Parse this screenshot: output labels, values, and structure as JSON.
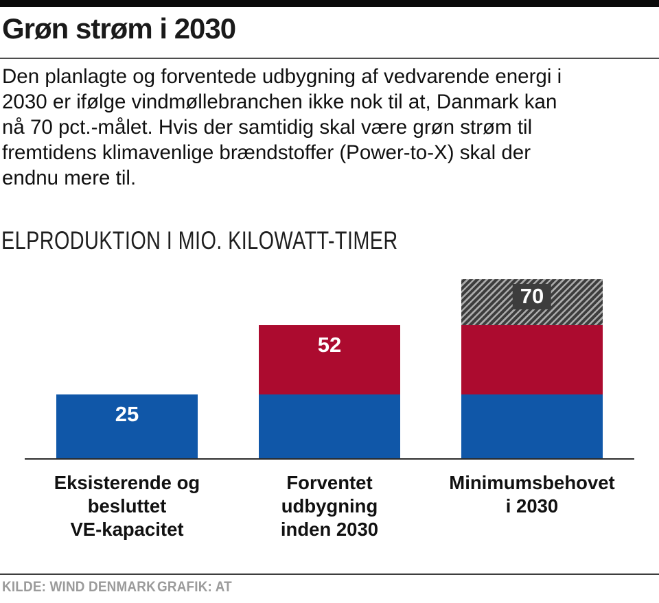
{
  "header": {
    "title": "Grøn strøm i 2030",
    "intro_lines": [
      "Den planlagte og forventede udbygning af vedvarende energi i",
      "2030 er ifølge vindmøllebranchen ikke nok til at, Danmark kan",
      "nå 70 pct.-målet. Hvis der samtidig skal være grøn strøm til",
      "fremtidens klimavenlige brændstoffer (Power-to-X) skal der",
      "endnu mere til."
    ]
  },
  "chart_data": {
    "type": "bar",
    "stacked": true,
    "title": "ELPRODUKTION I MIO. KILOWATT-TIMER",
    "ylabel": "Elproduktion i mio. kilowatt-timer",
    "ylim": [
      0,
      75
    ],
    "grid": false,
    "legend": "none",
    "categories": [
      "Eksisterende og besluttet VE-kapacitet",
      "Forventet udbygning inden 2030",
      "Minimumsbehovet i 2030"
    ],
    "totals": [
      25,
      52,
      70
    ],
    "bars": [
      {
        "category": "Eksisterende og besluttet VE-kapacitet",
        "category_lines": [
          "Eksisterende og",
          "besluttet",
          "VE-kapacitet"
        ],
        "total": 25,
        "value_label": "25",
        "segments": [
          {
            "color": "blue",
            "value": 25
          }
        ]
      },
      {
        "category": "Forventet udbygning inden 2030",
        "category_lines": [
          "Forventet",
          "udbygning",
          "inden 2030"
        ],
        "total": 52,
        "value_label": "52",
        "segments": [
          {
            "color": "blue",
            "value": 25
          },
          {
            "color": "red",
            "value": 27
          }
        ]
      },
      {
        "category": "Minimumsbehovet i 2030",
        "category_lines": [
          "Minimumsbehovet",
          "i 2030"
        ],
        "total": 70,
        "value_label": "70",
        "segments": [
          {
            "color": "blue",
            "value": 25
          },
          {
            "color": "red",
            "value": 27
          },
          {
            "color": "hatch",
            "value": 18
          }
        ]
      }
    ],
    "colors": {
      "blue": "#1057a8",
      "red": "#ac0b2f",
      "hatch_dark": "#3d3d3d",
      "hatch_light": "#ababab"
    }
  },
  "footer": {
    "source": "KILDE: WIND DENMARK",
    "credit": "GRAFIK: AT"
  }
}
